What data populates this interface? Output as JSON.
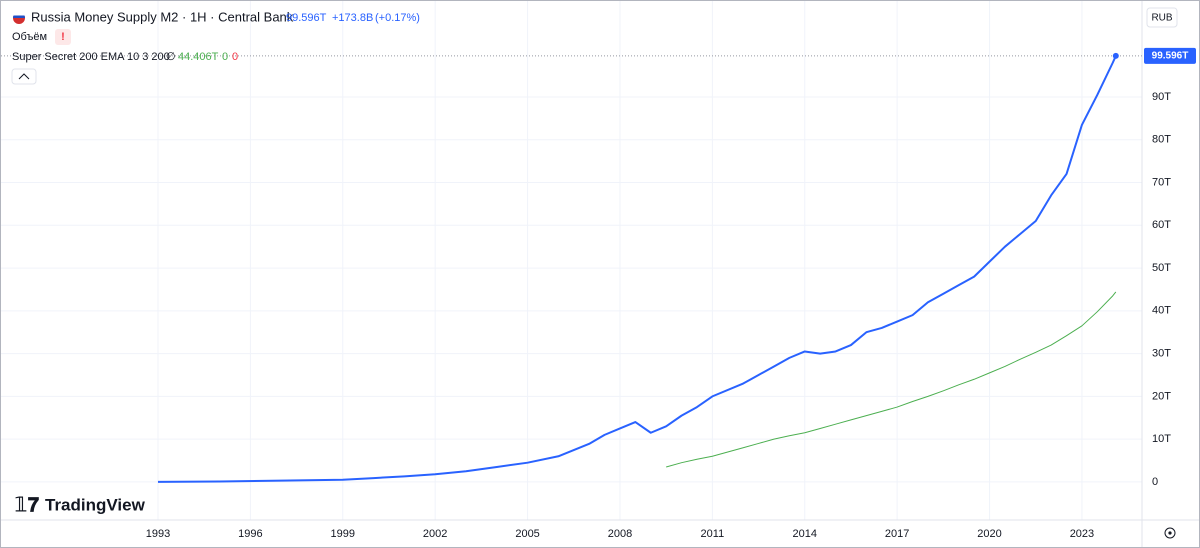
{
  "legend": {
    "title": "Russia Money Supply M2 · 1H · Central Bank",
    "change": "+173.8B",
    "change_pct": "(+0.17%)",
    "volume": "Объём",
    "indicator": "Super Secret 200 EMA 10 3 200",
    "indicator_flag": "∅",
    "indicator_v2": "0",
    "indicator_v3": "0",
    "currency": "RUB",
    "brand": "TradingView"
  },
  "chart_data": {
    "type": "line",
    "x": [
      1993,
      1995,
      1997,
      1999,
      2000,
      2001,
      2002,
      2003,
      2004,
      2005,
      2006,
      2007,
      2007.5,
      2008,
      2008.5,
      2009,
      2009.5,
      2010,
      2010.5,
      2011,
      2012,
      2012.5,
      2013,
      2013.5,
      2014,
      2014.5,
      2015,
      2015.5,
      2016,
      2016.5,
      2017,
      2017.5,
      2018,
      2018.5,
      2019,
      2019.5,
      2020,
      2020.5,
      2021,
      2021.5,
      2022,
      2022.5,
      2023,
      2023.5,
      2024,
      2024.1
    ],
    "series": [
      {
        "name": "Russia Money Supply M2",
        "color": "#2962ff",
        "last_label": "99.596T",
        "values": [
          0,
          0.1,
          0.3,
          0.5,
          0.9,
          1.3,
          1.8,
          2.5,
          3.5,
          4.5,
          6.0,
          8.9,
          11.0,
          12.5,
          14.0,
          11.5,
          13.0,
          15.5,
          17.5,
          20.0,
          23.0,
          25.0,
          27.0,
          29.0,
          30.5,
          30.0,
          30.5,
          32.0,
          35.0,
          36.0,
          37.5,
          39.0,
          42.0,
          44.0,
          46.0,
          48.0,
          51.5,
          55.0,
          58.0,
          61.0,
          67.0,
          72.0,
          83.5,
          90.5,
          98.0,
          99.596
        ]
      },
      {
        "name": "Super Secret 200 EMA",
        "color": "#4caf50",
        "last_label": "44.406T",
        "values": [
          null,
          null,
          null,
          null,
          null,
          null,
          null,
          null,
          null,
          null,
          null,
          null,
          null,
          null,
          null,
          null,
          3.5,
          4.5,
          5.3,
          6.0,
          8.0,
          9.0,
          10.0,
          10.8,
          11.5,
          12.5,
          13.5,
          14.5,
          15.5,
          16.5,
          17.5,
          18.8,
          20.0,
          21.3,
          22.7,
          24.0,
          25.5,
          27.0,
          28.7,
          30.3,
          32.0,
          34.2,
          36.5,
          39.8,
          43.5,
          44.406
        ]
      }
    ],
    "xlim": [
      1988.13,
      2024.95
    ],
    "xticks": [
      1993,
      1996,
      1999,
      2002,
      2005,
      2008,
      2011,
      2014,
      2017,
      2020,
      2023
    ],
    "ylim": [
      -8.9,
      110.8
    ],
    "yticks": [
      0,
      {
        "value": 10,
        "label": "10T"
      },
      {
        "value": 20,
        "label": "20T"
      },
      {
        "value": 30,
        "label": "30T"
      },
      {
        "value": 40,
        "label": "40T"
      },
      {
        "value": 50,
        "label": "50T"
      },
      {
        "value": 60,
        "label": "60T"
      },
      {
        "value": 70,
        "label": "70T"
      },
      {
        "value": 80,
        "label": "80T"
      },
      {
        "value": 90,
        "label": "90T"
      }
    ],
    "grid": true
  }
}
